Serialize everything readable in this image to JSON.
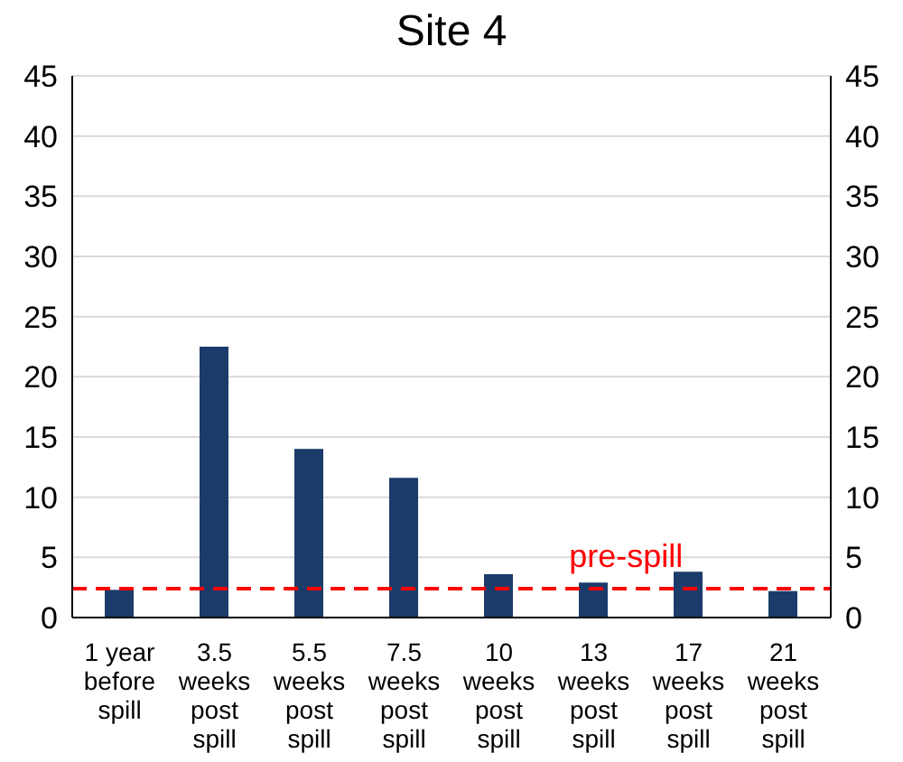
{
  "chart_data": {
    "type": "bar",
    "title": "Site 4",
    "categories": [
      "1 year before spill",
      "3.5 weeks post spill",
      "5.5 weeks post spill",
      "7.5 weeks post spill",
      "10 weeks post spill",
      "13 weeks post spill",
      "17 weeks post spill",
      "21 weeks post spill"
    ],
    "values": [
      2.3,
      22.5,
      14.0,
      11.6,
      3.6,
      2.9,
      3.8,
      2.2
    ],
    "color": "#1b3c6b",
    "ylim": [
      0,
      45
    ],
    "yticks": [
      0,
      5,
      10,
      15,
      20,
      25,
      30,
      35,
      40,
      45
    ],
    "y2lim": [
      0,
      45
    ],
    "y2ticks": [
      0,
      5,
      10,
      15,
      20,
      25,
      30,
      35,
      40,
      45
    ],
    "grid": "y",
    "ref_lines": [
      {
        "axis": "y",
        "value": 2.4,
        "label": "pre-spill",
        "color": "#ff0000",
        "line_style": "dashed"
      }
    ]
  }
}
